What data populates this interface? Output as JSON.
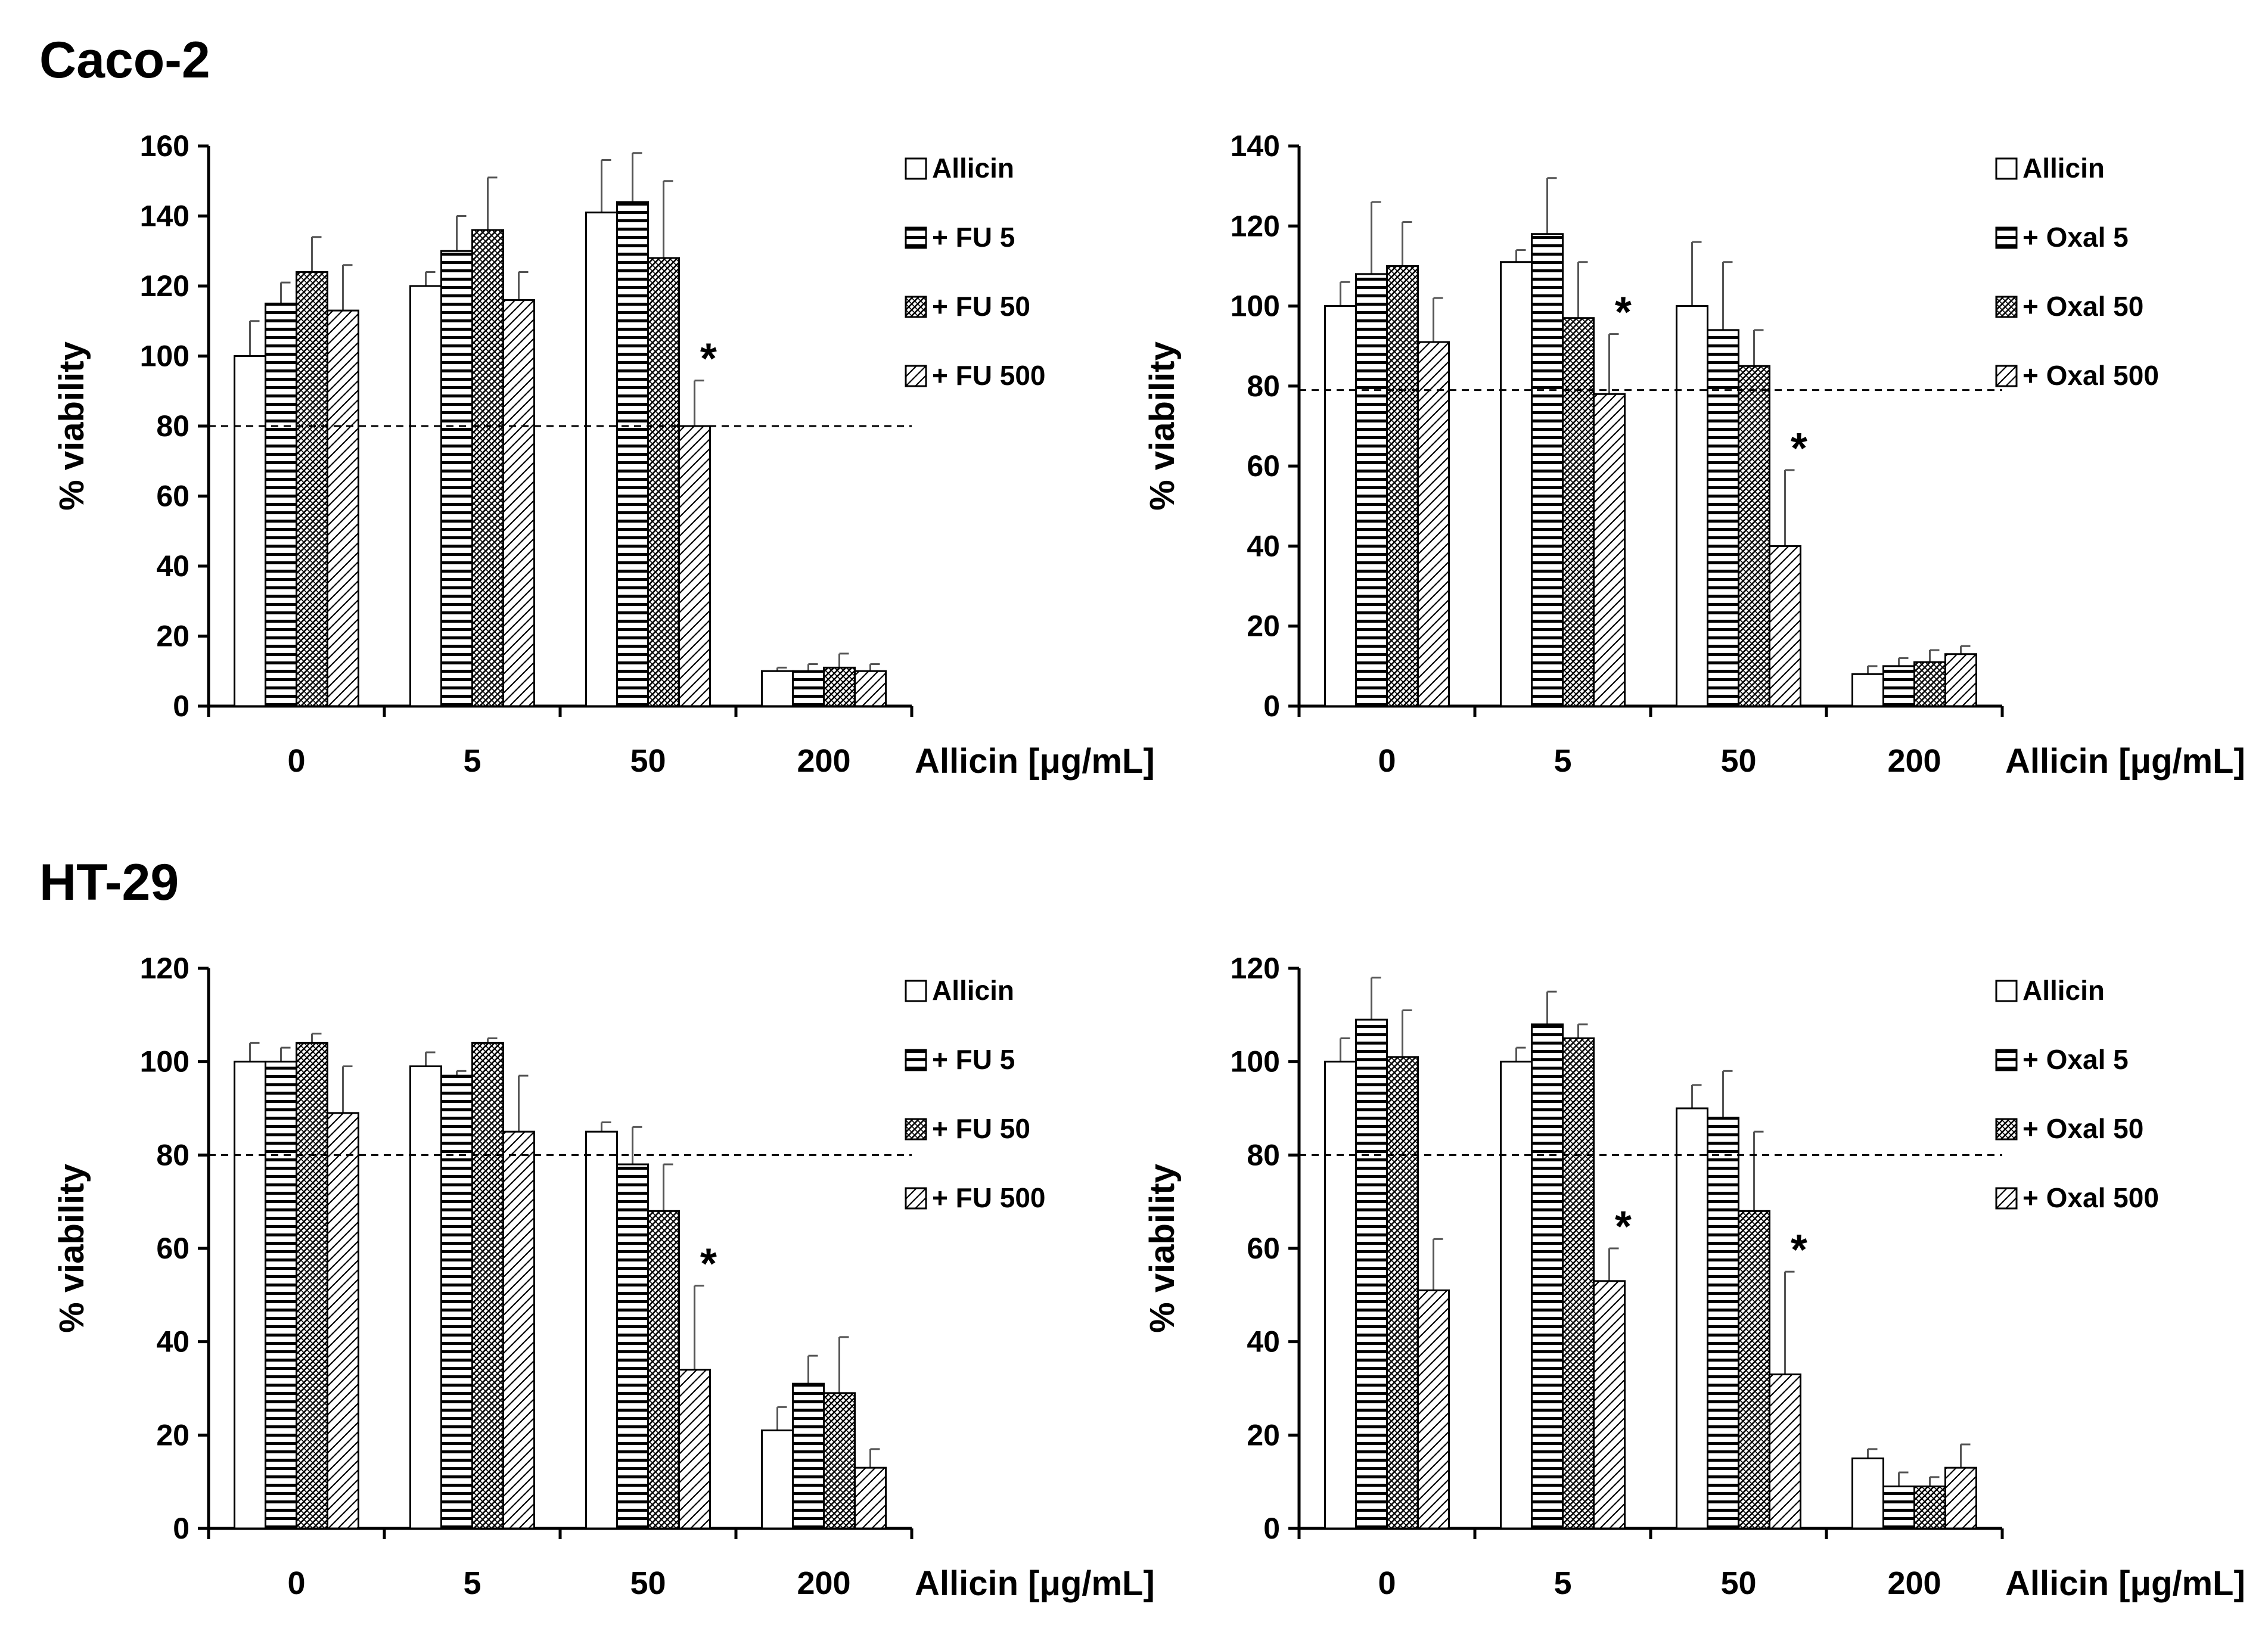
{
  "sections": [
    {
      "title": "Caco-2"
    },
    {
      "title": "HT-29"
    }
  ],
  "chart_data": [
    {
      "type": "bar",
      "cell_line": "Caco-2",
      "ylabel": "% viability",
      "xlabel": "Allicin [μg/mL]",
      "ylim": [
        0,
        160
      ],
      "yticks": [
        0,
        20,
        40,
        60,
        80,
        100,
        120,
        140,
        160
      ],
      "categories": [
        "0",
        "5",
        "50",
        "200"
      ],
      "reference_line": 80,
      "series": [
        {
          "name": "Allicin",
          "pattern": "blank",
          "values": [
            100,
            120,
            141,
            10
          ],
          "errors": [
            10,
            4,
            15,
            1
          ]
        },
        {
          "name": "+ FU 5",
          "pattern": "horizontal",
          "values": [
            115,
            130,
            144,
            10
          ],
          "errors": [
            6,
            10,
            14,
            2
          ]
        },
        {
          "name": "+ FU 50",
          "pattern": "cross",
          "values": [
            124,
            136,
            128,
            11
          ],
          "errors": [
            10,
            15,
            22,
            4
          ]
        },
        {
          "name": "+ FU 500",
          "pattern": "diagonal",
          "values": [
            113,
            116,
            80,
            10
          ],
          "errors": [
            13,
            8,
            13,
            2
          ]
        }
      ],
      "significance": [
        {
          "category": 2,
          "series": 3,
          "label": "*"
        }
      ]
    },
    {
      "type": "bar",
      "cell_line": "Caco-2",
      "ylabel": "% viability",
      "xlabel": "Allicin [μg/mL]",
      "ylim": [
        0,
        140
      ],
      "yticks": [
        0,
        20,
        40,
        60,
        80,
        100,
        120,
        140
      ],
      "categories": [
        "0",
        "5",
        "50",
        "200"
      ],
      "reference_line": 79,
      "series": [
        {
          "name": "Allicin",
          "pattern": "blank",
          "values": [
            100,
            111,
            100,
            8
          ],
          "errors": [
            6,
            3,
            16,
            2
          ]
        },
        {
          "name": "+ Oxal 5",
          "pattern": "horizontal",
          "values": [
            108,
            118,
            94,
            10
          ],
          "errors": [
            18,
            14,
            17,
            2
          ]
        },
        {
          "name": "+ Oxal 50",
          "pattern": "cross",
          "values": [
            110,
            97,
            85,
            11
          ],
          "errors": [
            11,
            14,
            9,
            3
          ]
        },
        {
          "name": "+ Oxal 500",
          "pattern": "diagonal",
          "values": [
            91,
            78,
            40,
            13
          ],
          "errors": [
            11,
            15,
            19,
            2
          ]
        }
      ],
      "significance": [
        {
          "category": 1,
          "series": 3,
          "label": "*"
        },
        {
          "category": 2,
          "series": 3,
          "label": "*"
        }
      ]
    },
    {
      "type": "bar",
      "cell_line": "HT-29",
      "ylabel": "% viability",
      "xlabel": "Allicin [μg/mL]",
      "ylim": [
        0,
        120
      ],
      "yticks": [
        0,
        20,
        40,
        60,
        80,
        100,
        120
      ],
      "categories": [
        "0",
        "5",
        "50",
        "200"
      ],
      "reference_line": 80,
      "series": [
        {
          "name": "Allicin",
          "pattern": "blank",
          "values": [
            100,
            99,
            85,
            21
          ],
          "errors": [
            4,
            3,
            2,
            5
          ]
        },
        {
          "name": "+ FU 5",
          "pattern": "horizontal",
          "values": [
            100,
            97,
            78,
            31
          ],
          "errors": [
            3,
            1,
            8,
            6
          ]
        },
        {
          "name": "+ FU 50",
          "pattern": "cross",
          "values": [
            104,
            104,
            68,
            29
          ],
          "errors": [
            2,
            1,
            10,
            12
          ]
        },
        {
          "name": "+ FU 500",
          "pattern": "diagonal",
          "values": [
            89,
            85,
            34,
            13
          ],
          "errors": [
            10,
            12,
            18,
            4
          ]
        }
      ],
      "significance": [
        {
          "category": 2,
          "series": 3,
          "label": "*"
        }
      ]
    },
    {
      "type": "bar",
      "cell_line": "HT-29",
      "ylabel": "% viability",
      "xlabel": "Allicin [μg/mL]",
      "ylim": [
        0,
        120
      ],
      "yticks": [
        0,
        20,
        40,
        60,
        80,
        100,
        120
      ],
      "categories": [
        "0",
        "5",
        "50",
        "200"
      ],
      "reference_line": 80,
      "series": [
        {
          "name": "Allicin",
          "pattern": "blank",
          "values": [
            100,
            100,
            90,
            15
          ],
          "errors": [
            5,
            3,
            5,
            2
          ]
        },
        {
          "name": "+ Oxal 5",
          "pattern": "horizontal",
          "values": [
            109,
            108,
            88,
            9
          ],
          "errors": [
            9,
            7,
            10,
            3
          ]
        },
        {
          "name": "+ Oxal 50",
          "pattern": "cross",
          "values": [
            101,
            105,
            68,
            9
          ],
          "errors": [
            10,
            3,
            17,
            2
          ]
        },
        {
          "name": "+ Oxal 500",
          "pattern": "diagonal",
          "values": [
            51,
            53,
            33,
            13
          ],
          "errors": [
            11,
            7,
            22,
            5
          ]
        }
      ],
      "significance": [
        {
          "category": 1,
          "series": 3,
          "label": "*"
        },
        {
          "category": 2,
          "series": 3,
          "label": "*"
        }
      ]
    }
  ]
}
